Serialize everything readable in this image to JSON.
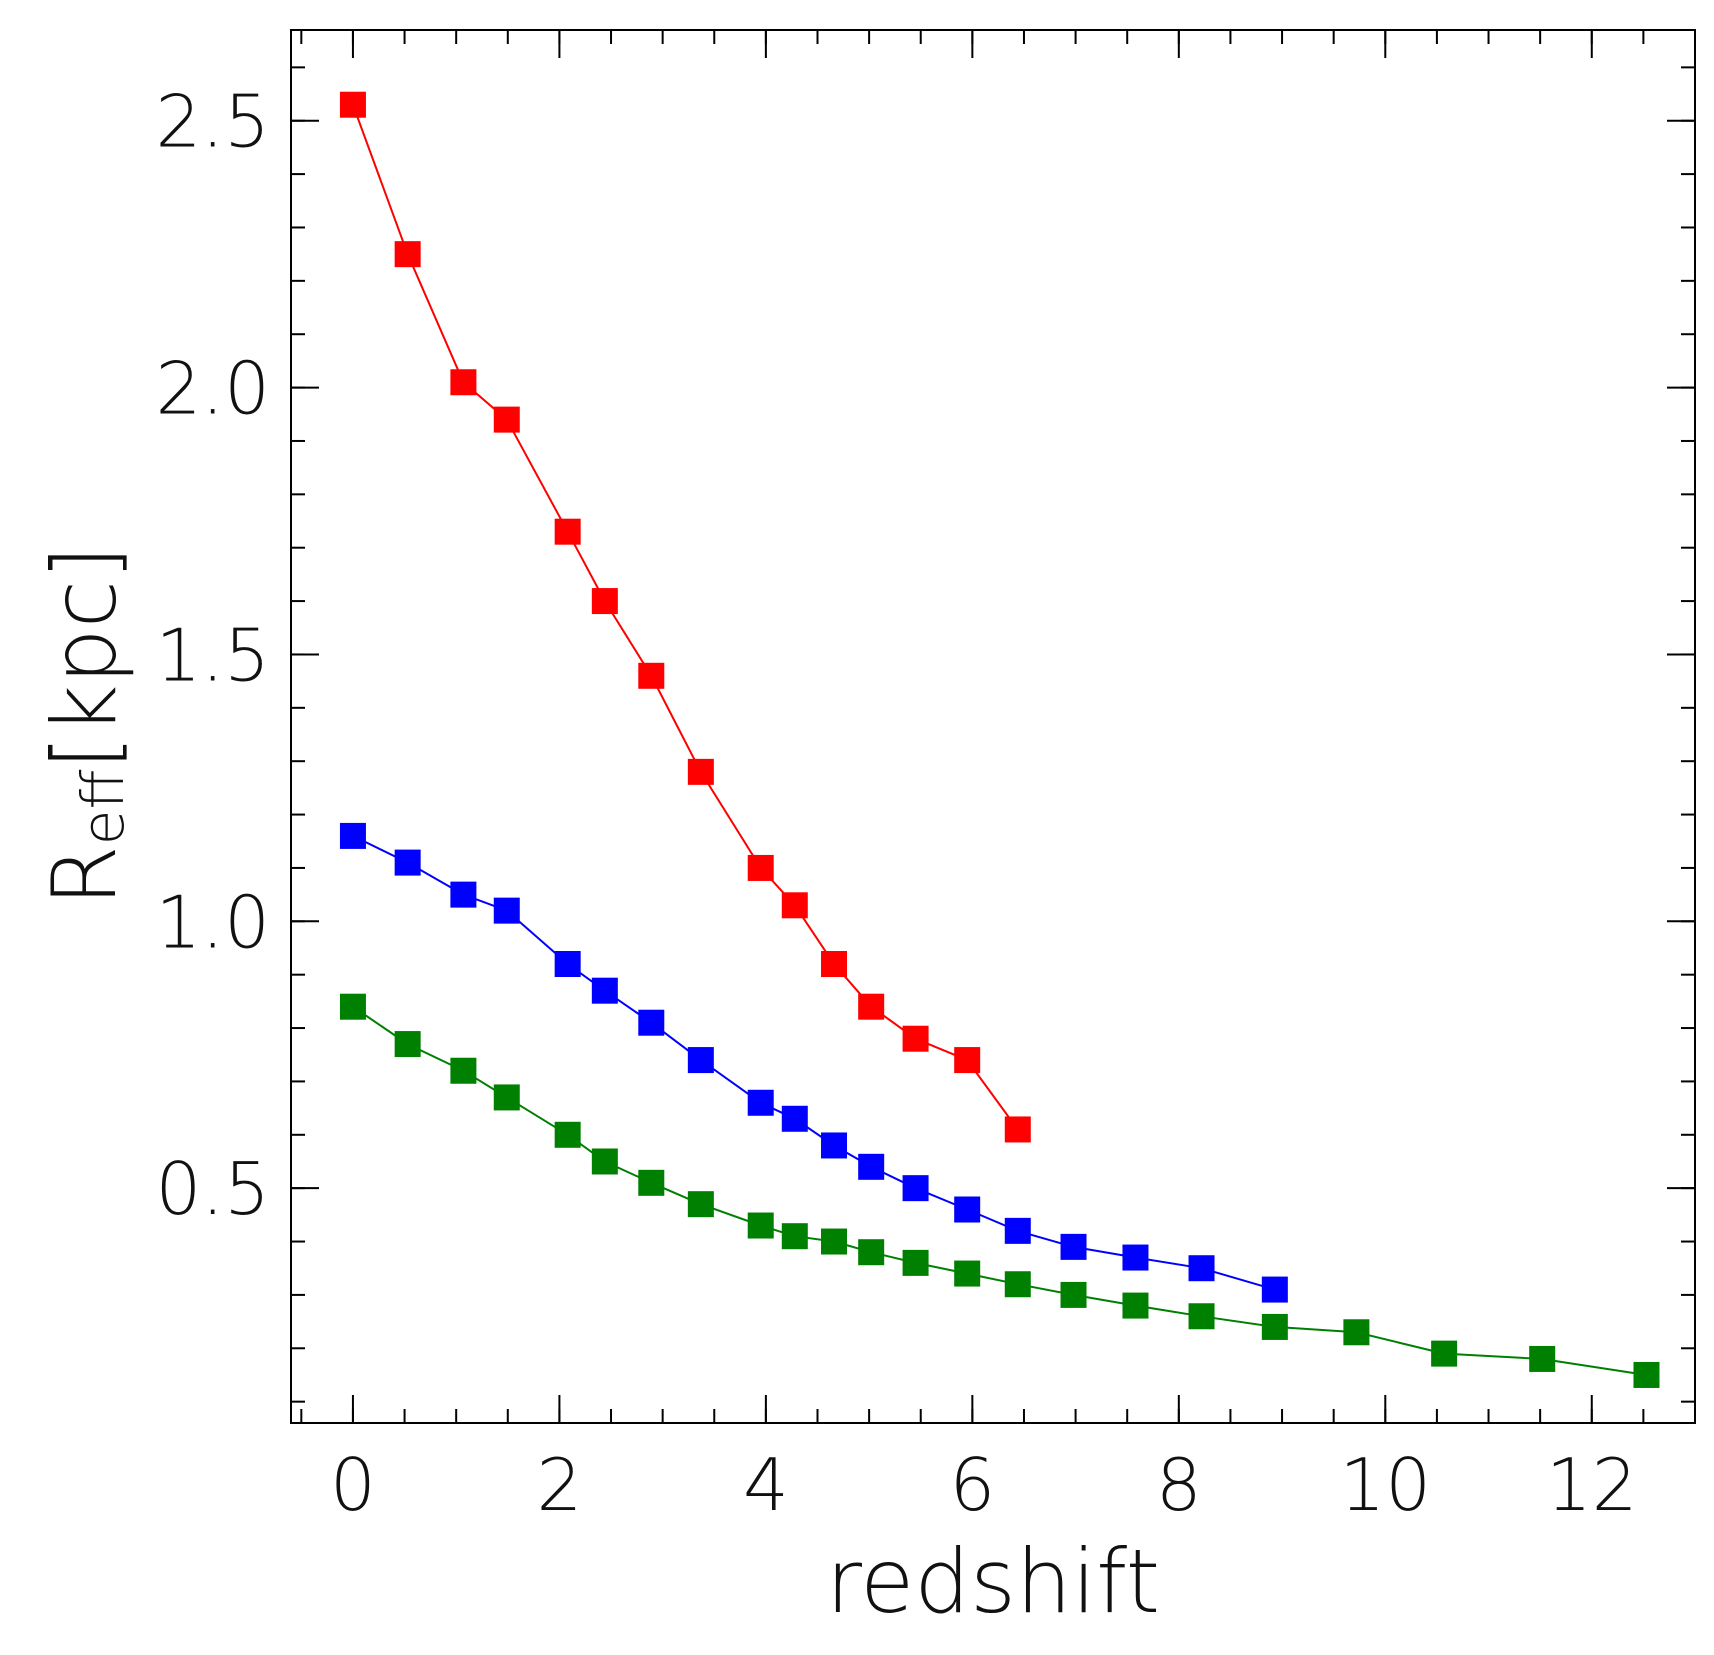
{
  "chart_data": {
    "type": "line",
    "xlabel": "redshift",
    "ylabel": {
      "main": "R",
      "sub": "eff",
      "unit": "[kpc]"
    },
    "xlim": [
      -0.6,
      13.0
    ],
    "ylim": [
      0.06,
      2.67
    ],
    "xticks": [
      0,
      2,
      4,
      6,
      8,
      10,
      12
    ],
    "xtick_labels": [
      "0",
      "2",
      "4",
      "6",
      "8",
      "10",
      "12"
    ],
    "yticks": [
      0.5,
      1.0,
      1.5,
      2.0,
      2.5
    ],
    "ytick_labels": [
      "0.5",
      "1.0",
      "1.5",
      "2.0",
      "2.5"
    ],
    "grid": false,
    "legend": false,
    "marker": "square",
    "series": [
      {
        "color": "#ff0000",
        "x": [
          0.0,
          0.53,
          1.07,
          1.49,
          2.08,
          2.44,
          2.89,
          3.37,
          3.95,
          4.28,
          4.66,
          5.02,
          5.45,
          5.95,
          6.44
        ],
        "y": [
          2.53,
          2.25,
          2.01,
          1.94,
          1.73,
          1.6,
          1.46,
          1.28,
          1.1,
          1.03,
          0.92,
          0.84,
          0.78,
          0.74,
          0.61
        ]
      },
      {
        "color": "#0000ff",
        "x": [
          0.0,
          0.53,
          1.07,
          1.49,
          2.08,
          2.44,
          2.89,
          3.37,
          3.95,
          4.28,
          4.66,
          5.02,
          5.45,
          5.95,
          6.44,
          6.98,
          7.58,
          8.22,
          8.93
        ],
        "y": [
          1.16,
          1.11,
          1.05,
          1.02,
          0.92,
          0.87,
          0.81,
          0.74,
          0.66,
          0.63,
          0.58,
          0.54,
          0.5,
          0.46,
          0.42,
          0.39,
          0.37,
          0.35,
          0.31
        ]
      },
      {
        "color": "#008000",
        "x": [
          0.0,
          0.53,
          1.07,
          1.49,
          2.08,
          2.44,
          2.89,
          3.37,
          3.95,
          4.28,
          4.66,
          5.02,
          5.45,
          5.95,
          6.44,
          6.98,
          7.58,
          8.22,
          8.93,
          9.72,
          10.57,
          11.52,
          12.53
        ],
        "y": [
          0.84,
          0.77,
          0.72,
          0.67,
          0.6,
          0.55,
          0.51,
          0.47,
          0.43,
          0.41,
          0.4,
          0.38,
          0.36,
          0.34,
          0.32,
          0.3,
          0.28,
          0.26,
          0.24,
          0.23,
          0.19,
          0.18,
          0.15
        ]
      }
    ]
  }
}
